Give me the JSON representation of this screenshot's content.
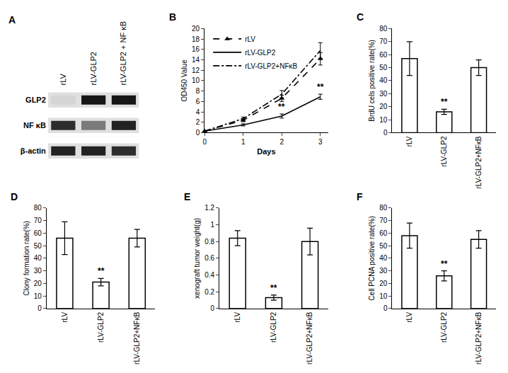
{
  "chart_data": [
    {
      "type": "blot",
      "title": "A",
      "categories": [
        "rLV",
        "rLV-GLP2",
        "rLV-GLP2 + NF κB"
      ],
      "series": [
        {
          "name": "GLP2",
          "values": [
            0.05,
            0.9,
            0.9
          ]
        },
        {
          "name": "NF κB",
          "values": [
            0.8,
            0.45,
            0.85
          ]
        },
        {
          "name": "β-actin",
          "values": [
            0.85,
            0.85,
            0.8
          ]
        }
      ]
    },
    {
      "type": "line",
      "title": "B",
      "xlabel": "Days",
      "ylabel": "OD450 Value",
      "x": [
        0,
        1,
        2,
        3
      ],
      "xlim": [
        0,
        3.2
      ],
      "xticks": [
        0,
        1,
        2,
        3
      ],
      "ylim": [
        0,
        20
      ],
      "yticks": [
        0,
        2,
        4,
        6,
        8,
        10,
        12,
        14,
        16,
        18,
        20
      ],
      "grid": false,
      "legend": "upper left",
      "series": [
        {
          "name": "rLV",
          "color": "#000000",
          "line_style": "dash",
          "marker": "triangle",
          "values": [
            0.3,
            2.4,
            6.6,
            14.2
          ],
          "errors": [
            0.1,
            0.3,
            0.6,
            1.2
          ]
        },
        {
          "name": "rLV-GLP2",
          "color": "#000000",
          "line_style": "solid",
          "values": [
            0.3,
            1.5,
            3.2,
            6.9
          ],
          "errors": [
            0.1,
            0.2,
            0.4,
            0.5
          ]
        },
        {
          "name": "rLV-GLP2+NFκB",
          "color": "#000000",
          "line_style": "dashdot",
          "values": [
            0.3,
            2.7,
            7.4,
            15.8
          ],
          "errors": [
            0.1,
            0.3,
            0.7,
            1.5
          ]
        }
      ],
      "annotations": [
        {
          "x": 2,
          "series": "rLV-GLP2",
          "text": "**"
        },
        {
          "x": 3,
          "series": "rLV-GLP2",
          "text": "**"
        }
      ]
    },
    {
      "type": "bar",
      "title": "C",
      "ylabel": "BrdU cels positive rate(%)",
      "categories": [
        "rLV",
        "rLV-GLP2",
        "rLV-GLP2+NFκB"
      ],
      "values": [
        57,
        16,
        50
      ],
      "errors": [
        13,
        2,
        6
      ],
      "color": "#ffffff",
      "ylim": [
        0,
        80
      ],
      "yticks": [
        0,
        10,
        20,
        30,
        40,
        50,
        60,
        70,
        80
      ],
      "grid": false,
      "annotations": [
        {
          "category": "rLV-GLP2",
          "text": "**"
        }
      ]
    },
    {
      "type": "bar",
      "title": "D",
      "ylabel": "Clony formation rate(%)",
      "categories": [
        "rLV",
        "rLV-GLP2",
        "rLV-GLP2+NFκB"
      ],
      "values": [
        56,
        21,
        56
      ],
      "errors": [
        13,
        3,
        7
      ],
      "color": "#ffffff",
      "ylim": [
        0,
        80
      ],
      "yticks": [
        0,
        10,
        20,
        30,
        40,
        50,
        60,
        70,
        80
      ],
      "grid": false,
      "annotations": [
        {
          "category": "rLV-GLP2",
          "text": "**"
        }
      ]
    },
    {
      "type": "bar",
      "title": "E",
      "ylabel": "xenograft tumor weight(g)",
      "categories": [
        "rLV",
        "rLV-GLP2",
        "rLV-GLP2+NFκB"
      ],
      "values": [
        0.84,
        0.13,
        0.8
      ],
      "errors": [
        0.09,
        0.03,
        0.16
      ],
      "color": "#ffffff",
      "ylim": [
        0,
        1.2
      ],
      "yticks": [
        0,
        0.2,
        0.4,
        0.6,
        0.8,
        1,
        1.2
      ],
      "grid": false,
      "annotations": [
        {
          "category": "rLV-GLP2",
          "text": "**"
        }
      ]
    },
    {
      "type": "bar",
      "title": "F",
      "ylabel": "Cell PCNA positive rate(%)",
      "categories": [
        "rLV",
        "rLV-GLP2",
        "rLV-GLP2+NFκB"
      ],
      "values": [
        58,
        26,
        55
      ],
      "errors": [
        10,
        4,
        7
      ],
      "color": "#ffffff",
      "ylim": [
        0,
        80
      ],
      "yticks": [
        0,
        10,
        20,
        30,
        40,
        50,
        60,
        70,
        80
      ],
      "grid": false,
      "annotations": [
        {
          "category": "rLV-GLP2",
          "text": "**"
        }
      ]
    }
  ]
}
